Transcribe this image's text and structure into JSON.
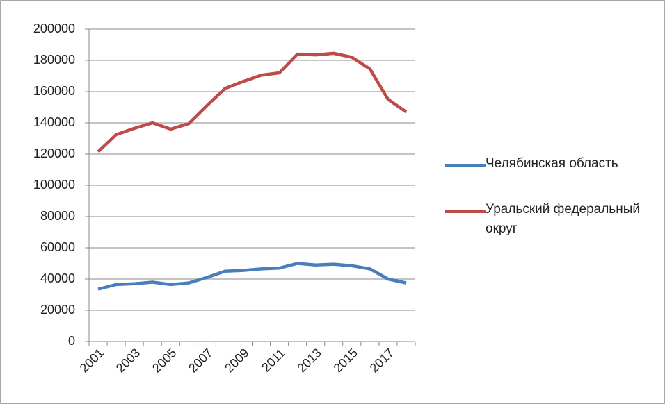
{
  "chart_data": {
    "type": "line",
    "categories": [
      "2001",
      null,
      "2003",
      null,
      "2005",
      null,
      "2007",
      null,
      "2009",
      null,
      "2011",
      null,
      "2013",
      null,
      "2015",
      null,
      "2017",
      null
    ],
    "series": [
      {
        "name": "Челябинская область",
        "color": "#4a7ebb",
        "values": [
          33500,
          36500,
          37000,
          38000,
          36500,
          37500,
          41000,
          45000,
          45500,
          46500,
          47000,
          50000,
          49000,
          49500,
          48500,
          46500,
          40000,
          37500
        ]
      },
      {
        "name": "Уральский федеральный округ",
        "color": "#be4b48",
        "values": [
          121500,
          132500,
          136500,
          140000,
          136000,
          139500,
          151000,
          162000,
          166500,
          170500,
          172000,
          184000,
          183500,
          184500,
          182000,
          174500,
          155000,
          147000
        ]
      }
    ],
    "ylim": [
      0,
      200000
    ],
    "yticks": [
      0,
      20000,
      40000,
      60000,
      80000,
      100000,
      120000,
      140000,
      160000,
      180000,
      200000
    ],
    "grid": true,
    "legend": "right"
  }
}
